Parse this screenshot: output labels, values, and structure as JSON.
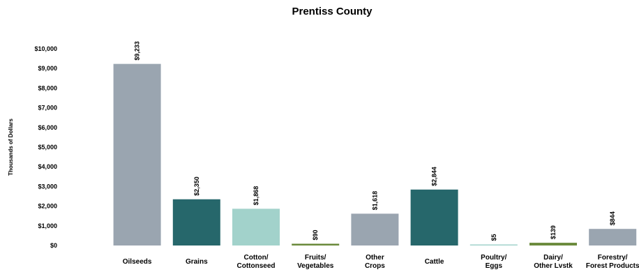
{
  "chart_data": {
    "type": "bar",
    "title": "Prentiss County",
    "ylabel": "Thousands of Dollars",
    "xlabel": "",
    "ylim": [
      0,
      10000
    ],
    "yticks": [
      0,
      1000,
      2000,
      3000,
      4000,
      5000,
      6000,
      7000,
      8000,
      9000,
      10000
    ],
    "ytick_labels": [
      "$0",
      "$1,000",
      "$2,000",
      "$3,000",
      "$4,000",
      "$5,000",
      "$6,000",
      "$7,000",
      "$8,000",
      "$9,000",
      "$10,000"
    ],
    "grid": false,
    "categories": [
      [
        "Oilseeds"
      ],
      [
        "Grains"
      ],
      [
        "Cotton/",
        "Cottonseed"
      ],
      [
        "Fruits/",
        "Vegetables"
      ],
      [
        "Other",
        "Crops"
      ],
      [
        "Cattle"
      ],
      [
        "Poultry/",
        "Eggs"
      ],
      [
        "Dairy/",
        "Other Lvstk"
      ],
      [
        "Forestry/",
        "Forest Products"
      ]
    ],
    "values": [
      9233,
      2350,
      1868,
      90,
      1618,
      2844,
      5,
      139,
      844
    ],
    "data_labels": [
      "$9,233",
      "$2,350",
      "$1,868",
      "$90",
      "$1,618",
      "$2,844",
      "$5",
      "$139",
      "$844"
    ],
    "colors": [
      "#9aa5b0",
      "#26676b",
      "#a2d2cb",
      "#6b8a3c",
      "#9aa5b0",
      "#26676b",
      "#a2d2cb",
      "#6b8a3c",
      "#9aa5b0"
    ]
  }
}
